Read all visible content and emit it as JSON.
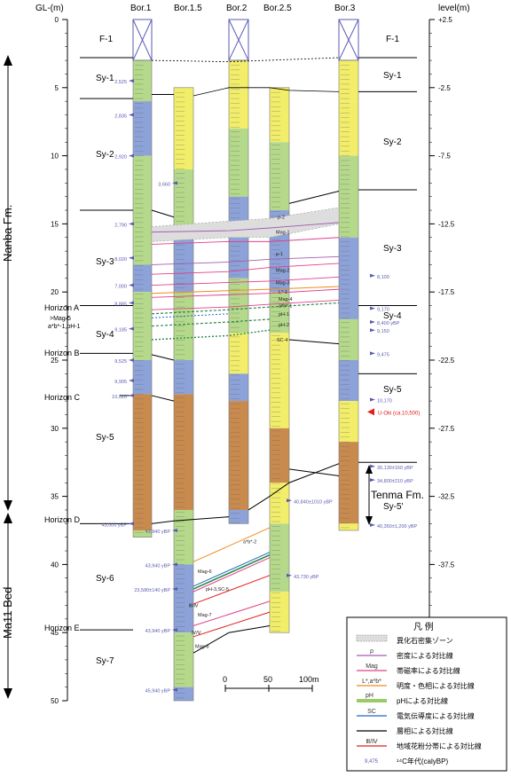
{
  "axes": {
    "left_title": "GL-(m)",
    "right_title": "level(m)",
    "left_ticks": [
      0,
      5,
      10,
      15,
      20,
      25,
      30,
      35,
      40,
      45,
      50
    ],
    "right_ticks": [
      "+2.5",
      "-2.5",
      "-7.5",
      "-12.5",
      "-17.5",
      "-22.5",
      "-27.5",
      "-32.5",
      "-37.5"
    ]
  },
  "boreholes": [
    {
      "name": "Bor.1"
    },
    {
      "name": "Bor.1.5"
    },
    {
      "name": "Bor.2"
    },
    {
      "name": "Bor.2.5"
    },
    {
      "name": "Bor.3"
    }
  ],
  "formations": {
    "nanba": "Nanba Fm.",
    "ma11": "Ma11 Bed",
    "tenma": "Tenma Fm."
  },
  "units_left": {
    "f1": "F-1",
    "sy1": "Sy-1",
    "sy2": "Sy-2",
    "sy3": "Sy-3",
    "horizon_a": "Horizon A",
    "horizon_a_sub1": ">Mag-5",
    "horizon_a_sub2": "a*b*-1,pH-1",
    "sy4": "Sy-4",
    "horizon_b": "Horizon B",
    "horizon_c": "Horizon C",
    "sy5": "Sy-5",
    "horizon_d": "Horizon D",
    "sy6": "Sy-6",
    "horizon_e": "Horizon E",
    "sy7": "Sy-7"
  },
  "units_right": {
    "f1": "F-1",
    "sy1": "Sy-1",
    "sy2": "Sy-2",
    "sy3": "Sy-3",
    "sy4": "Sy-4",
    "sy5": "Sy-5",
    "sy5p": "Sy-5'"
  },
  "ages_bor1": [
    "2,525",
    "2,835",
    "2,920",
    "2,790",
    "8,020",
    "7,000",
    "8,885",
    "9,185",
    "9,525",
    "9,905",
    "10,020",
    "43,000 yBP"
  ],
  "ages_bor15": [
    "3,660",
    "43,940 yBP",
    "43,940 yBP",
    "23,580±140 yBP",
    "43,940 yBP",
    "45,940 yBP"
  ],
  "ages_bor25": [
    "40,840±1010 yBP",
    "43,730 yBP"
  ],
  "ages_bor3": [
    "8,100",
    "9,170",
    "8,400 yBP",
    "9,150",
    "9,475",
    "10,170",
    "U-Oki (ca.10,500)",
    "30,130±160 yBP",
    "34,800±210 yBP",
    "40,350±1,200 yBP"
  ],
  "correlation_labels": {
    "rho2": "ρ-2",
    "mag1": "Mag-1",
    "rho1": "ρ-1",
    "mag2": "Mag-2",
    "mag3": "Mag-3",
    "l1": "L*-1",
    "mag4": "Mag-4",
    "ab1": "a*b*-1",
    "ph1": "pH-1",
    "ph2": "pH-2",
    "sc4": "SC-4",
    "ab2": "a*b*-2",
    "mag6": "Mag-6",
    "ph3sc5": "pH-3,SC-5",
    "ivv": "Ⅲ/Ⅳ",
    "mag7": "Mag-7",
    "ivv2": "Ⅳ/Ⅴ",
    "mag8": "Mag-8"
  },
  "scale": {
    "t0": "0",
    "t50": "50",
    "t100": "100m"
  },
  "legend": {
    "title": "凡 例",
    "items": [
      {
        "sym": "",
        "text": "異化石密集ゾーン"
      },
      {
        "sym": "ρ",
        "text": "密度による対比線"
      },
      {
        "sym": "Mag",
        "text": "帯磁率による対比線"
      },
      {
        "sym": "L*,a*b*",
        "text": "明度・色相による対比線"
      },
      {
        "sym": "pH",
        "text": "pHによる対比線"
      },
      {
        "sym": "SC",
        "text": "電気伝導度による対比線"
      },
      {
        "sym": "",
        "text": "層相による対比線"
      },
      {
        "sym": "Ⅲ/Ⅳ",
        "text": "地域花粉分帯による対比線"
      },
      {
        "sym": "9,475",
        "text": "¹⁴C年代(calyBP)"
      }
    ]
  },
  "colors": {
    "yellow": "#f2ee6a",
    "green": "#b5d98a",
    "blue": "#8ca2d8",
    "brown": "#c98a4e",
    "purple": "#a15fb0",
    "magenta": "#e0408a",
    "orange": "#f08a1c",
    "teal": "#2a8a4a",
    "cyan": "#1a6ac0",
    "red": "#e02020",
    "ageblue": "#5a5ab4"
  }
}
